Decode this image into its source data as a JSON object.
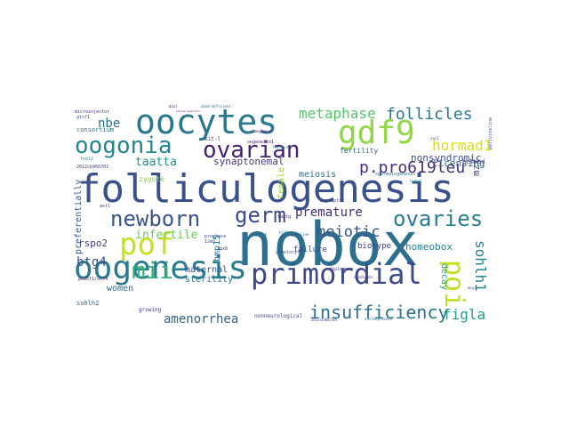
{
  "words": [
    {
      "text": "nobox",
      "color": "#2c6f8e"
    },
    {
      "text": "folliculogenesis",
      "color": "#3b518b"
    },
    {
      "text": "oocytes",
      "color": "#2a788e"
    },
    {
      "text": "gdf9",
      "color": "#8fd744"
    },
    {
      "text": "oogenesis",
      "color": "#287c8e"
    },
    {
      "text": "primordial",
      "color": "#3e4989"
    },
    {
      "text": "pof",
      "color": "#c8e020"
    },
    {
      "text": "poi",
      "color": "#c2df23"
    },
    {
      "text": "oogonia",
      "color": "#24868e"
    },
    {
      "text": "ovarian",
      "color": "#482173"
    },
    {
      "text": "newborn",
      "color": "#3a538b"
    },
    {
      "text": "germ",
      "color": "#3e4a89"
    },
    {
      "text": "ovaries",
      "color": "#287d8e"
    },
    {
      "text": "mii",
      "color": "#30b07a"
    },
    {
      "text": "insufficiency",
      "color": "#2c728e"
    },
    {
      "text": "metaphase",
      "color": "#52c569"
    },
    {
      "text": "follicles",
      "color": "#2a778e"
    },
    {
      "text": "hormad1",
      "color": "#d8e219"
    },
    {
      "text": "meiotic",
      "color": "#39568c"
    },
    {
      "text": "premature",
      "color": "#472d7b"
    },
    {
      "text": "p.pro619leu",
      "color": "#472f7d"
    },
    {
      "text": "sohlh1",
      "color": "#25848e"
    },
    {
      "text": "figla",
      "color": "#1fa088"
    },
    {
      "text": "amenorrhea",
      "color": "#33638d"
    },
    {
      "text": "btg4",
      "color": "#3b528b"
    },
    {
      "text": "nbe",
      "color": "#2c718e"
    },
    {
      "text": "taatta",
      "color": "#20928c"
    },
    {
      "text": "synaptonemal",
      "color": "#443983"
    },
    {
      "text": "infertile",
      "color": "#6ccd5a"
    },
    {
      "text": "licensing",
      "color": "#30678d"
    },
    {
      "text": "nonsyndromic",
      "color": "#3d4d8a"
    },
    {
      "text": "homeobox",
      "color": "#27808e"
    },
    {
      "text": "meiosis",
      "color": "#2c728e"
    },
    {
      "text": "maternal",
      "color": "#3a548c"
    },
    {
      "text": "sterility",
      "color": "#297b8e"
    },
    {
      "text": "women",
      "color": "#31688e"
    },
    {
      "text": "preferentially",
      "color": "#38598c"
    },
    {
      "text": "bmp15",
      "color": "#2c718e"
    },
    {
      "text": "rspo2",
      "color": "#424086"
    },
    {
      "text": "decay",
      "color": "#20a386"
    },
    {
      "text": "biotype",
      "color": "#433e85"
    },
    {
      "text": "failure",
      "color": "#3f4788"
    },
    {
      "text": "female",
      "color": "#9bd93c"
    },
    {
      "text": "mzt",
      "color": "#404588"
    },
    {
      "text": "zygote",
      "color": "#86d549"
    },
    {
      "text": "fertility",
      "color": "#33638d"
    },
    {
      "text": "consortium",
      "color": "#2d718e"
    },
    {
      "text": "sohlh2",
      "color": "#355f8d"
    },
    {
      "text": "helped",
      "color": "#3f4889"
    },
    {
      "text": "growing",
      "color": "#46307e"
    },
    {
      "text": "nonneurological",
      "color": "#3e4a89"
    },
    {
      "text": "kit-l",
      "color": "#453581"
    },
    {
      "text": "oogenesin1",
      "color": "#481f70"
    },
    {
      "text": "gtsf1",
      "color": "#3b528b"
    },
    {
      "text": "foxl2",
      "color": "#26828e"
    },
    {
      "text": "2012cb966702",
      "color": "#46337e"
    },
    {
      "text": "astl",
      "color": "#472a7a"
    },
    {
      "text": "pou5f1/oct4",
      "color": "#471365"
    },
    {
      "text": "spermatogenesis",
      "color": "#2e6f8e"
    },
    {
      "text": "asynaptic",
      "color": "#46307e"
    },
    {
      "text": "diplonema",
      "color": "#46307e"
    },
    {
      "text": "prophase",
      "color": "#3b518b"
    },
    {
      "text": "feedback",
      "color": "#1f948c"
    },
    {
      "text": "gametocyte",
      "color": "#3b528b"
    },
    {
      "text": "candidate",
      "color": "#472d7b"
    },
    {
      "text": "microinjector",
      "color": "#482878"
    },
    {
      "text": "2012cb966704",
      "color": "#3e4c8a"
    },
    {
      "text": "lhx8",
      "color": "#433d84"
    },
    {
      "text": "tagtg",
      "color": "#472f7d"
    },
    {
      "text": "dazl",
      "color": "#482475"
    },
    {
      "text": "zar2",
      "color": "#424186"
    },
    {
      "text": "msy2",
      "color": "#414487"
    },
    {
      "text": "periviteline",
      "color": "#3a548c"
    },
    {
      "text": "oocyte-specific",
      "color": "#450559"
    },
    {
      "text": "abed-deficient",
      "color": "#2d708e"
    },
    {
      "text": "nucleoplasmin",
      "color": "#2f6c8e"
    },
    {
      "text": "fetub",
      "color": "#31688e"
    },
    {
      "text": "germline",
      "color": "#31688e"
    },
    {
      "text": "figla2",
      "color": "#22a884"
    },
    {
      "text": "klf4",
      "color": "#2b758e"
    },
    {
      "text": "amylopod",
      "color": "#481a6c"
    },
    {
      "text": "12mb",
      "color": "#39568c"
    }
  ]
}
